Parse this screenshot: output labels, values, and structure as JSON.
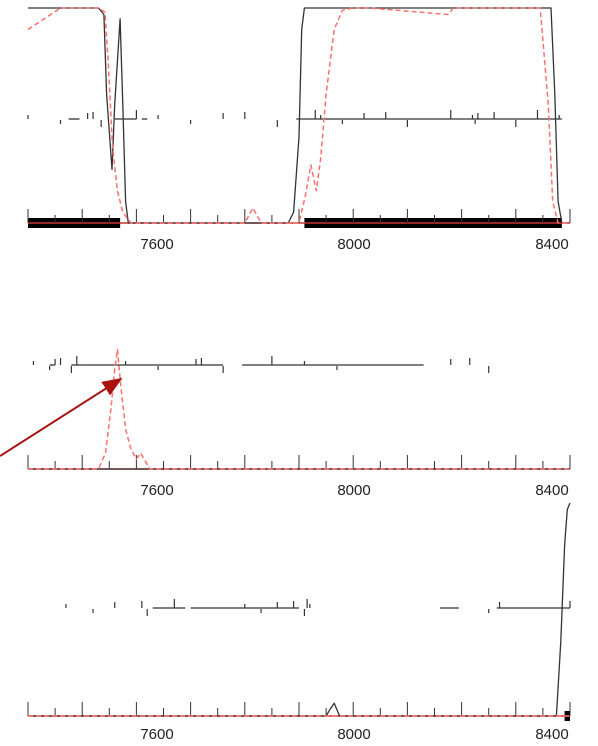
{
  "colors": {
    "black_series": "#333333",
    "red_series": "#ff7070",
    "arrow": "#aa1111",
    "axis": "#cc3333",
    "bar": "#000000"
  },
  "chart_data": [
    {
      "type": "line",
      "panel": "top",
      "x_ticks": [
        "7600",
        "8000",
        "8400"
      ],
      "xlim": [
        7400,
        8400
      ],
      "ylim": [
        0,
        1
      ],
      "grid": false,
      "legend": "none",
      "series": [
        {
          "style": "solid-black",
          "x": [
            7400,
            7530,
            7540,
            7545,
            7555,
            7560,
            7570,
            7575,
            7580,
            7585,
            7880,
            7890,
            7900,
            7905,
            7910,
            7915,
            8365,
            8372,
            8378,
            8385
          ],
          "y": [
            1,
            1,
            0.97,
            0.6,
            0.25,
            0.55,
            0.95,
            0.55,
            0.1,
            0,
            0,
            0.05,
            0.4,
            0.9,
            1,
            1,
            1,
            0.6,
            0.1,
            0
          ]
        },
        {
          "style": "dashed-red",
          "x": [
            7400,
            7460,
            7530,
            7542,
            7548,
            7556,
            7565,
            7575,
            7590,
            7800,
            7815,
            7830,
            7900,
            7912,
            7922,
            7932,
            7940,
            7950,
            7965,
            7980,
            8000,
            8020,
            8030,
            8175,
            8185,
            8195,
            8345,
            8350,
            8360,
            8368,
            8378,
            8400
          ],
          "y": [
            0.9,
            1,
            1,
            0.98,
            0.75,
            0.35,
            0.15,
            0.05,
            0,
            0,
            0.07,
            0,
            0,
            0.13,
            0.27,
            0.15,
            0.3,
            0.6,
            0.9,
            0.99,
            1,
            1,
            1,
            0.97,
            1,
            1,
            1,
            0.85,
            0.55,
            0.1,
            0,
            0
          ]
        }
      ],
      "spikes": [
        7400,
        7460,
        7510,
        7520,
        7535,
        7600,
        7640,
        7700,
        7760,
        7800,
        7860,
        7930,
        7940,
        7980,
        8020,
        8060,
        8100,
        8180,
        8220,
        8225,
        8230,
        8260,
        8300,
        8340,
        8380
      ],
      "segments": [
        [
          7475,
          7495
        ],
        [
          7560,
          7600
        ],
        [
          7610,
          7620
        ],
        [
          7895,
          8385
        ]
      ],
      "bars": [
        [
          7400,
          7570
        ],
        [
          7910,
          8385
        ]
      ]
    },
    {
      "type": "line",
      "panel": "middle",
      "x_ticks": [
        "7600",
        "8000",
        "8400"
      ],
      "xlim": [
        7400,
        8400
      ],
      "ylim": [
        0,
        1
      ],
      "grid": false,
      "legend": "none",
      "series": [
        {
          "style": "solid-black",
          "x": [
            7400,
            8400
          ],
          "y": [
            0,
            0
          ]
        },
        {
          "style": "dashed-red",
          "x": [
            7400,
            7530,
            7543,
            7553,
            7560,
            7565,
            7572,
            7580,
            7590,
            7600,
            7608,
            7625,
            8400
          ],
          "y": [
            0,
            0,
            0.08,
            0.3,
            0.5,
            0.6,
            0.4,
            0.2,
            0.1,
            0.05,
            0.08,
            0,
            0
          ]
        }
      ],
      "spikes": [
        7410,
        7440,
        7450,
        7460,
        7480,
        7490,
        7580,
        7640,
        7710,
        7720,
        7760,
        7850,
        7910,
        7970,
        8180,
        8215,
        8250
      ],
      "segments": [
        [
          7440,
          7450
        ],
        [
          7480,
          7500
        ],
        [
          7500,
          7760
        ],
        [
          7795,
          8130
        ]
      ],
      "bars": []
    },
    {
      "type": "line",
      "panel": "bottom",
      "x_ticks": [
        "7600",
        "8000",
        "8400"
      ],
      "xlim": [
        7400,
        8400
      ],
      "ylim": [
        0,
        1
      ],
      "grid": false,
      "legend": "none",
      "series": [
        {
          "style": "solid-black",
          "x": [
            7400,
            7950,
            7957,
            7965,
            7975,
            8375,
            8383,
            8390,
            8395,
            8400
          ],
          "y": [
            0,
            0,
            0.03,
            0.06,
            0,
            0,
            0.35,
            0.8,
            0.97,
            1
          ]
        },
        {
          "style": "dashed-red",
          "x": [
            7400,
            8400
          ],
          "y": [
            0,
            0
          ]
        }
      ],
      "spikes": [
        7470,
        7520,
        7560,
        7610,
        7620,
        7670,
        7800,
        7830,
        7860,
        7890,
        7910,
        7915,
        7920,
        8250,
        8270,
        8400
      ],
      "segments": [
        [
          7630,
          7690
        ],
        [
          7700,
          7900
        ],
        [
          8160,
          8195
        ],
        [
          8265,
          8400
        ]
      ],
      "bars": [
        [
          8390,
          8400
        ]
      ]
    }
  ],
  "annotation": {
    "type": "arrow",
    "from_panel": "middle",
    "points_to_x": 7575
  }
}
